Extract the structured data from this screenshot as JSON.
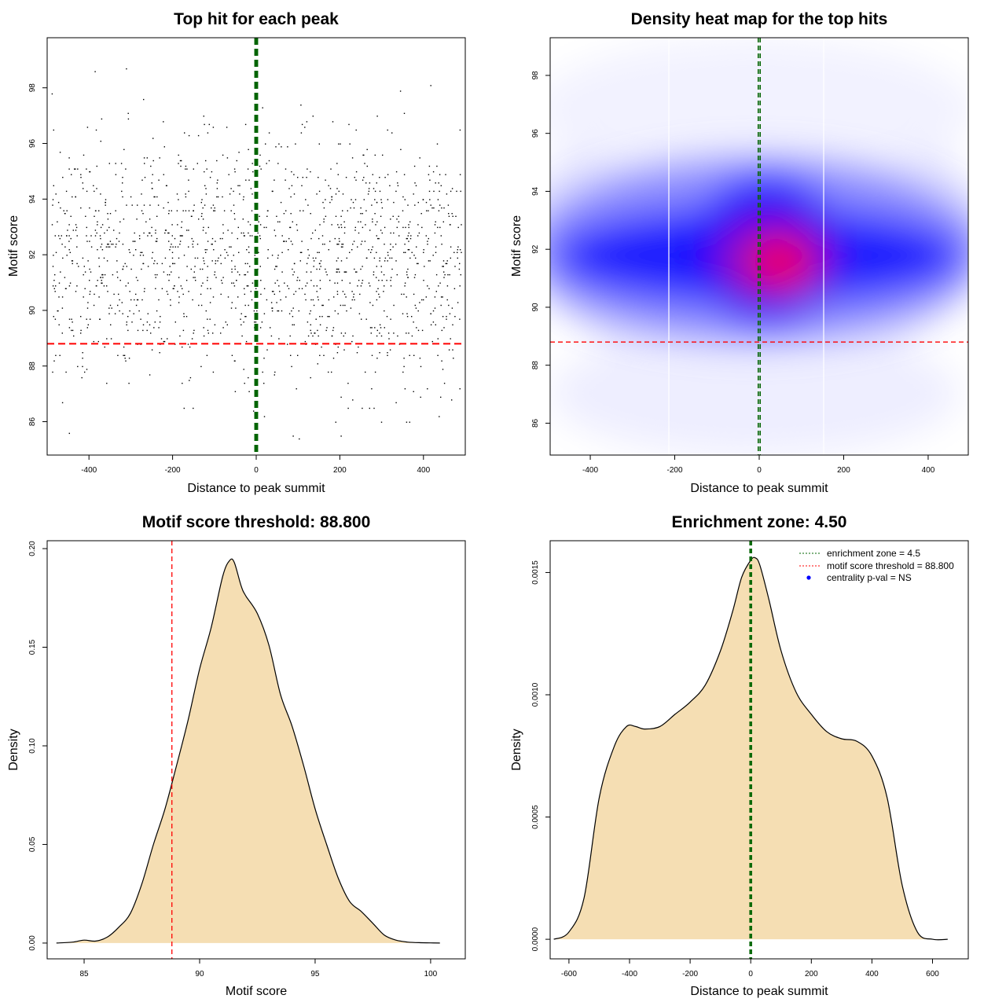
{
  "chart_data": [
    {
      "type": "scatter",
      "title": "Top hit for each peak",
      "xlabel": "Distance to peak summit",
      "ylabel": "Motif score",
      "xlim": [
        -500,
        500
      ],
      "ylim": [
        84.8,
        99.8
      ],
      "xticks": [
        -400,
        -200,
        0,
        200,
        400
      ],
      "yticks": [
        86,
        88,
        90,
        92,
        94,
        96,
        98
      ],
      "point_count": 1500,
      "point_center": [
        0,
        91.8
      ],
      "point_spread": [
        290,
        2.2
      ],
      "threshold_y": 88.8,
      "enrichment_x": [
        -2.25,
        2.25
      ],
      "colors": {
        "points": "#000000",
        "threshold": "#ff0000",
        "enrichment": "#006400"
      }
    },
    {
      "type": "heatmap",
      "title": "Density heat map for the top hits",
      "xlabel": "Distance to peak summit",
      "ylabel": "Motif score",
      "xlim": [
        -495,
        495
      ],
      "ylim": [
        84.9,
        99.3
      ],
      "xticks": [
        -400,
        -200,
        0,
        200,
        400
      ],
      "yticks": [
        86,
        88,
        90,
        92,
        94,
        96,
        98
      ],
      "threshold_y": 88.8,
      "enrichment_x": [
        -2.25,
        2.25
      ],
      "colors": {
        "low": "#ffffff",
        "mid": "#0000ff",
        "high": "#ff0000",
        "threshold": "#ff0000",
        "enrichment": "#006400"
      }
    },
    {
      "type": "area",
      "title": "Motif score threshold: 88.800",
      "xlabel": "Motif score",
      "ylabel": "Density",
      "xlim": [
        83.4,
        101.5
      ],
      "ylim": [
        -0.008,
        0.204
      ],
      "xticks": [
        85,
        90,
        95,
        100
      ],
      "yticks": [
        0.0,
        0.05,
        0.1,
        0.15,
        0.2
      ],
      "ytick_labels": [
        "0.00",
        "0.05",
        "0.10",
        "0.15",
        "0.20"
      ],
      "x": [
        83.8,
        84.5,
        85.0,
        85.5,
        86.0,
        86.5,
        87.0,
        87.5,
        88.0,
        88.5,
        89.0,
        89.5,
        90.0,
        90.5,
        91.0,
        91.3,
        91.5,
        91.8,
        92.0,
        92.5,
        93.0,
        93.5,
        94.0,
        94.5,
        95.0,
        95.5,
        96.0,
        96.5,
        97.0,
        97.5,
        98.0,
        98.5,
        99.0,
        99.5,
        100.0,
        100.4
      ],
      "y": [
        0.0,
        0.0005,
        0.0015,
        0.001,
        0.003,
        0.008,
        0.015,
        0.03,
        0.05,
        0.068,
        0.09,
        0.113,
        0.139,
        0.16,
        0.186,
        0.194,
        0.193,
        0.181,
        0.176,
        0.167,
        0.151,
        0.126,
        0.11,
        0.09,
        0.068,
        0.05,
        0.033,
        0.021,
        0.016,
        0.01,
        0.004,
        0.0015,
        0.0005,
        0.0002,
        0.0001,
        0.0
      ],
      "threshold_x": 88.8,
      "colors": {
        "fill": "#f5deb3",
        "line": "#000000",
        "threshold": "#ff0000"
      }
    },
    {
      "type": "area",
      "title": "Enrichment zone: 4.50",
      "xlabel": "Distance to peak summit",
      "ylabel": "Density",
      "xlim": [
        -662,
        718
      ],
      "ylim": [
        -8e-05,
        0.00163
      ],
      "xticks": [
        -600,
        -400,
        -200,
        0,
        200,
        400,
        600
      ],
      "yticks": [
        0.0,
        0.0005,
        0.001,
        0.0015
      ],
      "ytick_labels": [
        "0.0000",
        "0.0005",
        "0.0010",
        "0.0015"
      ],
      "x": [
        -650,
        -600,
        -550,
        -500,
        -450,
        -410,
        -380,
        -350,
        -300,
        -250,
        -200,
        -150,
        -100,
        -60,
        -30,
        0,
        15,
        30,
        60,
        100,
        150,
        200,
        250,
        300,
        350,
        400,
        450,
        500,
        550,
        600,
        650
      ],
      "y": [
        0.0,
        3e-05,
        0.00017,
        0.00058,
        0.00079,
        0.00087,
        0.00087,
        0.00086,
        0.00087,
        0.00092,
        0.00097,
        0.00104,
        0.00118,
        0.00134,
        0.00148,
        0.00155,
        0.00156,
        0.00153,
        0.00139,
        0.00118,
        0.00101,
        0.00092,
        0.00085,
        0.00082,
        0.00081,
        0.00075,
        0.00058,
        0.00022,
        3e-05,
        0.0,
        0.0
      ],
      "enrichment_x": [
        -2.25,
        2.25
      ],
      "legend": [
        {
          "label": "enrichment zone = 4.5",
          "color": "#006400",
          "style": "dotted-line"
        },
        {
          "label": "motif score threshold = 88.800",
          "color": "#ff0000",
          "style": "dotted-line"
        },
        {
          "label": "centrality p-val = NS",
          "color": "#0000ff",
          "style": "point"
        }
      ],
      "legend_position": "top-right",
      "colors": {
        "fill": "#f5deb3",
        "line": "#000000",
        "enrichment": "#006400"
      }
    }
  ]
}
